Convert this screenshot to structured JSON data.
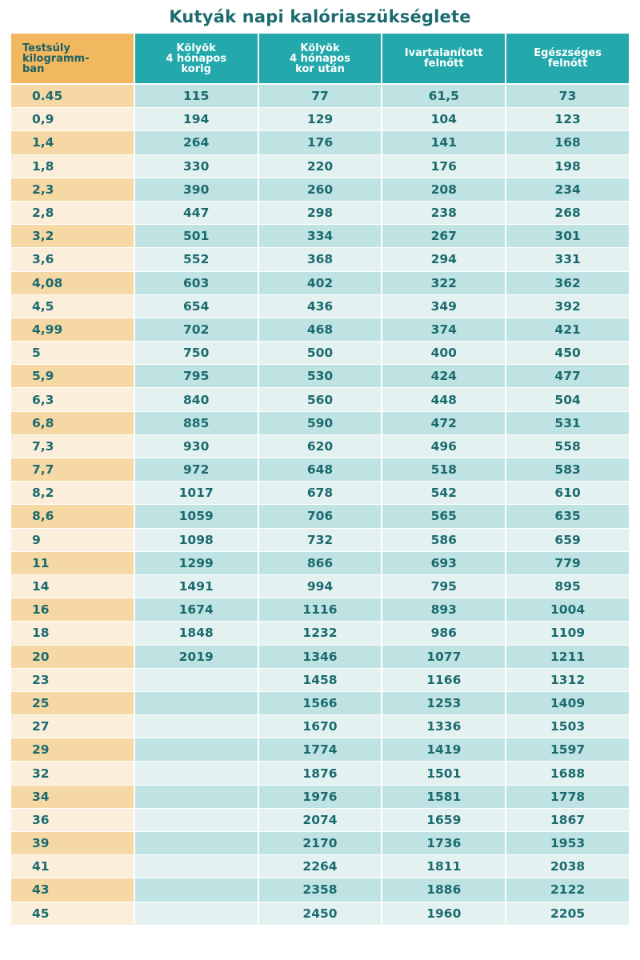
{
  "title": "Kutyák napi kalóriaszükséglete",
  "headers": [
    [
      "Testsúly",
      "kilogramm-",
      "ban"
    ],
    [
      "Kölyök",
      "4 hónapos",
      "korig"
    ],
    [
      "Kölyök",
      "4 hónapos",
      "kor után"
    ],
    [
      "Ivartalanított",
      "felnőtt"
    ],
    [
      "Egészséges",
      "felnőtt"
    ]
  ],
  "rows": [
    [
      "0.45",
      "115",
      "77",
      "61,5",
      "73"
    ],
    [
      "0,9",
      "194",
      "129",
      "104",
      "123"
    ],
    [
      "1,4",
      "264",
      "176",
      "141",
      "168"
    ],
    [
      "1,8",
      "330",
      "220",
      "176",
      "198"
    ],
    [
      "2,3",
      "390",
      "260",
      "208",
      "234"
    ],
    [
      "2,8",
      "447",
      "298",
      "238",
      "268"
    ],
    [
      "3,2",
      "501",
      "334",
      "267",
      "301"
    ],
    [
      "3,6",
      "552",
      "368",
      "294",
      "331"
    ],
    [
      "4,08",
      "603",
      "402",
      "322",
      "362"
    ],
    [
      "4,5",
      "654",
      "436",
      "349",
      "392"
    ],
    [
      "4,99",
      "702",
      "468",
      "374",
      "421"
    ],
    [
      "5",
      "750",
      "500",
      "400",
      "450"
    ],
    [
      "5,9",
      "795",
      "530",
      "424",
      "477"
    ],
    [
      "6,3",
      "840",
      "560",
      "448",
      "504"
    ],
    [
      "6,8",
      "885",
      "590",
      "472",
      "531"
    ],
    [
      "7,3",
      "930",
      "620",
      "496",
      "558"
    ],
    [
      "7,7",
      "972",
      "648",
      "518",
      "583"
    ],
    [
      "8,2",
      "1017",
      "678",
      "542",
      "610"
    ],
    [
      "8,6",
      "1059",
      "706",
      "565",
      "635"
    ],
    [
      "9",
      "1098",
      "732",
      "586",
      "659"
    ],
    [
      "11",
      "1299",
      "866",
      "693",
      "779"
    ],
    [
      "14",
      "1491",
      "994",
      "795",
      "895"
    ],
    [
      "16",
      "1674",
      "1116",
      "893",
      "1004"
    ],
    [
      "18",
      "1848",
      "1232",
      "986",
      "1109"
    ],
    [
      "20",
      "2019",
      "1346",
      "1077",
      "1211"
    ],
    [
      "23",
      "",
      "1458",
      "1166",
      "1312"
    ],
    [
      "25",
      "",
      "1566",
      "1253",
      "1409"
    ],
    [
      "27",
      "",
      "1670",
      "1336",
      "1503"
    ],
    [
      "29",
      "",
      "1774",
      "1419",
      "1597"
    ],
    [
      "32",
      "",
      "1876",
      "1501",
      "1688"
    ],
    [
      "34",
      "",
      "1976",
      "1581",
      "1778"
    ],
    [
      "36",
      "",
      "2074",
      "1659",
      "1867"
    ],
    [
      "39",
      "",
      "2170",
      "1736",
      "1953"
    ],
    [
      "41",
      "",
      "2264",
      "1811",
      "2038"
    ],
    [
      "43",
      "",
      "2358",
      "1886",
      "2122"
    ],
    [
      "45",
      "",
      "2450",
      "1960",
      "2205"
    ]
  ]
}
